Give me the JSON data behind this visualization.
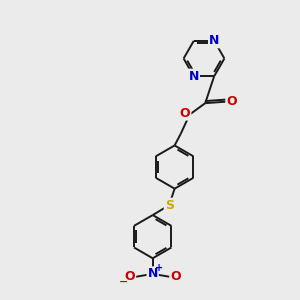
{
  "bg_color": "#ebebeb",
  "bond_color": "#1a1a1a",
  "bond_width": 1.4,
  "N_color": "#0000cc",
  "O_color": "#cc0000",
  "S_color": "#ccaa00",
  "figsize": [
    3.0,
    3.0
  ],
  "dpi": 100,
  "xlim": [
    0,
    10
  ],
  "ylim": [
    0,
    10
  ]
}
